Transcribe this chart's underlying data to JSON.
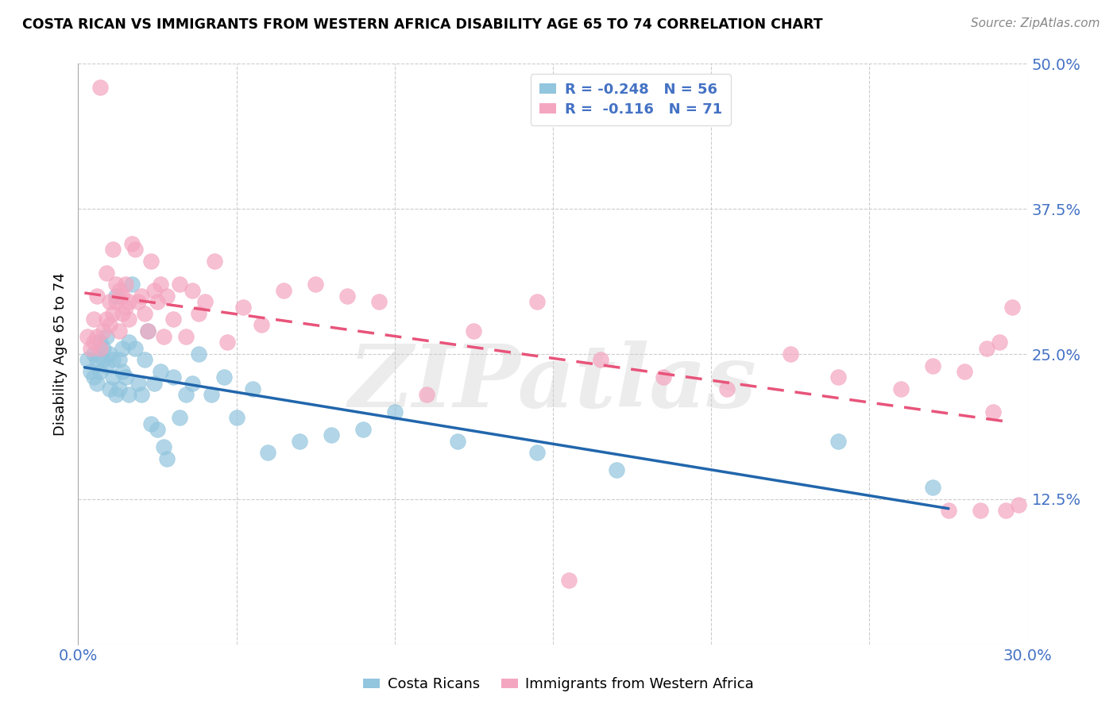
{
  "title": "COSTA RICAN VS IMMIGRANTS FROM WESTERN AFRICA DISABILITY AGE 65 TO 74 CORRELATION CHART",
  "source": "Source: ZipAtlas.com",
  "xlabel": "",
  "ylabel": "Disability Age 65 to 74",
  "xlim": [
    0.0,
    0.3
  ],
  "ylim": [
    0.0,
    0.5
  ],
  "xticks": [
    0.0,
    0.05,
    0.1,
    0.15,
    0.2,
    0.25,
    0.3
  ],
  "xticklabels": [
    "0.0%",
    "",
    "",
    "",
    "",
    "",
    "30.0%"
  ],
  "yticks": [
    0.0,
    0.125,
    0.25,
    0.375,
    0.5
  ],
  "yticklabels": [
    "",
    "12.5%",
    "25.0%",
    "37.5%",
    "50.0%"
  ],
  "legend_r1": "R = -0.248",
  "legend_n1": "N = 56",
  "legend_r2": "R = -0.116",
  "legend_n2": "N = 71",
  "blue_color": "#92c5de",
  "pink_color": "#f4a6c0",
  "blue_line_color": "#2166ac",
  "pink_line_color": "#e8547a",
  "watermark": "ZIPatlas",
  "costa_rican_x": [
    0.003,
    0.004,
    0.005,
    0.005,
    0.006,
    0.006,
    0.007,
    0.007,
    0.008,
    0.008,
    0.009,
    0.009,
    0.01,
    0.01,
    0.011,
    0.011,
    0.012,
    0.012,
    0.013,
    0.013,
    0.014,
    0.014,
    0.015,
    0.016,
    0.016,
    0.017,
    0.018,
    0.019,
    0.02,
    0.021,
    0.022,
    0.023,
    0.024,
    0.025,
    0.026,
    0.027,
    0.028,
    0.03,
    0.032,
    0.034,
    0.036,
    0.038,
    0.042,
    0.046,
    0.05,
    0.055,
    0.06,
    0.07,
    0.08,
    0.09,
    0.1,
    0.12,
    0.145,
    0.17,
    0.24,
    0.27
  ],
  "costa_rican_y": [
    0.245,
    0.235,
    0.25,
    0.23,
    0.245,
    0.225,
    0.26,
    0.235,
    0.255,
    0.245,
    0.24,
    0.265,
    0.25,
    0.22,
    0.23,
    0.245,
    0.215,
    0.3,
    0.245,
    0.22,
    0.235,
    0.255,
    0.23,
    0.215,
    0.26,
    0.31,
    0.255,
    0.225,
    0.215,
    0.245,
    0.27,
    0.19,
    0.225,
    0.185,
    0.235,
    0.17,
    0.16,
    0.23,
    0.195,
    0.215,
    0.225,
    0.25,
    0.215,
    0.23,
    0.195,
    0.22,
    0.165,
    0.175,
    0.18,
    0.185,
    0.2,
    0.175,
    0.165,
    0.15,
    0.175,
    0.135
  ],
  "western_africa_x": [
    0.003,
    0.004,
    0.005,
    0.005,
    0.006,
    0.006,
    0.007,
    0.007,
    0.008,
    0.009,
    0.009,
    0.01,
    0.01,
    0.011,
    0.011,
    0.012,
    0.012,
    0.013,
    0.013,
    0.014,
    0.014,
    0.015,
    0.015,
    0.016,
    0.016,
    0.017,
    0.018,
    0.019,
    0.02,
    0.021,
    0.022,
    0.023,
    0.024,
    0.025,
    0.026,
    0.027,
    0.028,
    0.03,
    0.032,
    0.034,
    0.036,
    0.038,
    0.04,
    0.043,
    0.047,
    0.052,
    0.058,
    0.065,
    0.075,
    0.085,
    0.095,
    0.11,
    0.125,
    0.145,
    0.165,
    0.185,
    0.205,
    0.225,
    0.24,
    0.26,
    0.27,
    0.275,
    0.28,
    0.285,
    0.287,
    0.289,
    0.291,
    0.293,
    0.295,
    0.297,
    0.155
  ],
  "western_africa_y": [
    0.265,
    0.255,
    0.28,
    0.26,
    0.265,
    0.3,
    0.255,
    0.48,
    0.27,
    0.28,
    0.32,
    0.275,
    0.295,
    0.285,
    0.34,
    0.295,
    0.31,
    0.305,
    0.27,
    0.285,
    0.3,
    0.31,
    0.29,
    0.295,
    0.28,
    0.345,
    0.34,
    0.295,
    0.3,
    0.285,
    0.27,
    0.33,
    0.305,
    0.295,
    0.31,
    0.265,
    0.3,
    0.28,
    0.31,
    0.265,
    0.305,
    0.285,
    0.295,
    0.33,
    0.26,
    0.29,
    0.275,
    0.305,
    0.31,
    0.3,
    0.295,
    0.215,
    0.27,
    0.295,
    0.245,
    0.23,
    0.22,
    0.25,
    0.23,
    0.22,
    0.24,
    0.115,
    0.235,
    0.115,
    0.255,
    0.2,
    0.26,
    0.115,
    0.29,
    0.12,
    0.055
  ]
}
